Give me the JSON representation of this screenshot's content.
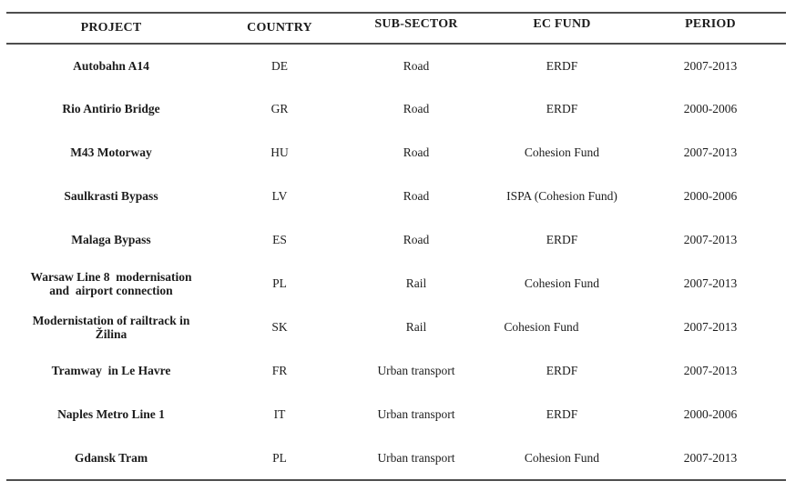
{
  "colors": {
    "background": "#ffffff",
    "text": "#1c1c1c",
    "rule": "#4e4e4e"
  },
  "table": {
    "columns": [
      "PROJECT",
      "COUNTRY",
      "SUB-SECTOR",
      "EC FUND",
      "PERIOD"
    ],
    "rows": [
      {
        "project": "Autobahn A14",
        "country": "DE",
        "sub_sector": "Road",
        "ec_fund": "ERDF",
        "period": "2007-2013"
      },
      {
        "project": "Rio Antirio Bridge",
        "country": "GR",
        "sub_sector": "Road",
        "ec_fund": "ERDF",
        "period": "2000-2006"
      },
      {
        "project": "M43 Motorway",
        "country": "HU",
        "sub_sector": "Road",
        "ec_fund": "Cohesion Fund",
        "period": "2007-2013"
      },
      {
        "project": "Saulkrasti Bypass",
        "country": "LV",
        "sub_sector": "Road",
        "ec_fund": "ISPA (Cohesion Fund)",
        "period": "2000-2006"
      },
      {
        "project": "Malaga Bypass",
        "country": "ES",
        "sub_sector": "Road",
        "ec_fund": "ERDF",
        "period": "2007-2013"
      },
      {
        "project": "Warsaw Line 8  modernisation\nand  airport connection",
        "country": "PL",
        "sub_sector": "Rail",
        "ec_fund": "Cohesion Fund",
        "period": "2007-2013"
      },
      {
        "project": "Modernistation of railtrack in\nŽilina",
        "country": "SK",
        "sub_sector": "Rail",
        "ec_fund": "Cohesion Fund",
        "period": "2007-2013"
      },
      {
        "project": "Tramway  in Le Havre",
        "country": "FR",
        "sub_sector": "Urban transport",
        "ec_fund": "ERDF",
        "period": "2007-2013"
      },
      {
        "project": "Naples Metro Line 1",
        "country": "IT",
        "sub_sector": "Urban transport",
        "ec_fund": "ERDF",
        "period": "2000-2006"
      },
      {
        "project": "Gdansk Tram",
        "country": "PL",
        "sub_sector": "Urban transport",
        "ec_fund": "Cohesion Fund",
        "period": "2007-2013"
      }
    ]
  }
}
